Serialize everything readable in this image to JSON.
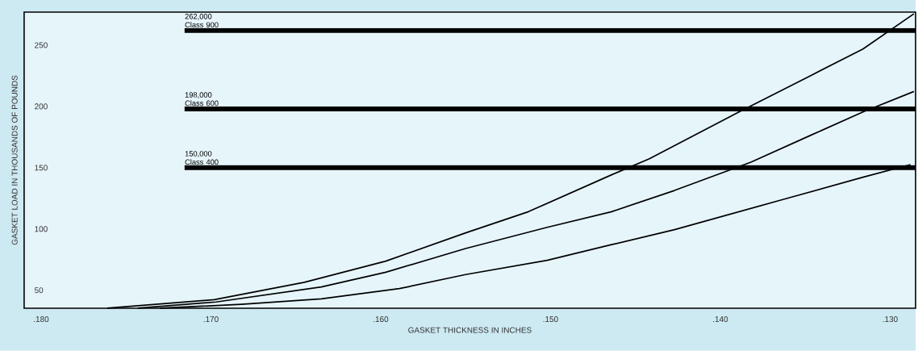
{
  "chart_data": {
    "type": "line",
    "xlabel": "GASKET THICKNESS IN INCHES",
    "ylabel": "GASKET LOAD IN THOUSANDS OF POUNDS",
    "xlim": [
      0.181,
      0.1285
    ],
    "ylim": [
      35.3,
      277
    ],
    "xticks": [
      {
        "value": 0.18,
        "label": ".180"
      },
      {
        "value": 0.17,
        "label": ".170"
      },
      {
        "value": 0.16,
        "label": ".160"
      },
      {
        "value": 0.15,
        "label": ".150"
      },
      {
        "value": 0.14,
        "label": ".140"
      },
      {
        "value": 0.13,
        "label": ".130"
      }
    ],
    "yticks": [
      50,
      100,
      150,
      200,
      250
    ],
    "grid": false,
    "line_style": "solid",
    "series": [
      {
        "color": "#000000",
        "x": [
          0.1761,
          0.1698,
          0.1645,
          0.1597,
          0.155,
          0.1513,
          0.1464,
          0.1442,
          0.1389,
          0.1347,
          0.1316,
          0.1286
        ],
        "values": [
          35.3,
          42.3,
          56.4,
          73.7,
          96.8,
          114.1,
          144.2,
          157.1,
          195.5,
          225.0,
          246.8,
          275.6
        ]
      },
      {
        "color": "#000000",
        "x": [
          0.1743,
          0.1697,
          0.1635,
          0.1597,
          0.155,
          0.1502,
          0.1464,
          0.1427,
          0.1382,
          0.1347,
          0.1316,
          0.1286
        ],
        "values": [
          35.3,
          40.4,
          52.6,
          64.7,
          84.0,
          101.3,
          114.1,
          131.4,
          154.5,
          176.3,
          195.5,
          212.2
        ]
      },
      {
        "color": "#000000",
        "x": [
          0.173,
          0.1682,
          0.1635,
          0.1589,
          0.155,
          0.1502,
          0.1464,
          0.1427,
          0.1364,
          0.1316,
          0.1288
        ],
        "values": [
          35.3,
          38.5,
          42.9,
          51.3,
          62.8,
          74.4,
          87.2,
          99.4,
          123.7,
          142.2,
          152.5
        ]
      }
    ],
    "ref_lines": [
      {
        "axis": "y",
        "value": 262,
        "label": "262,000 Class 900",
        "color": "#000000"
      },
      {
        "axis": "y",
        "value": 198,
        "label": "198,000 Class 600",
        "color": "#000000"
      },
      {
        "axis": "y",
        "value": 150,
        "label": "150,000 Class 400",
        "color": "#000000"
      }
    ]
  }
}
